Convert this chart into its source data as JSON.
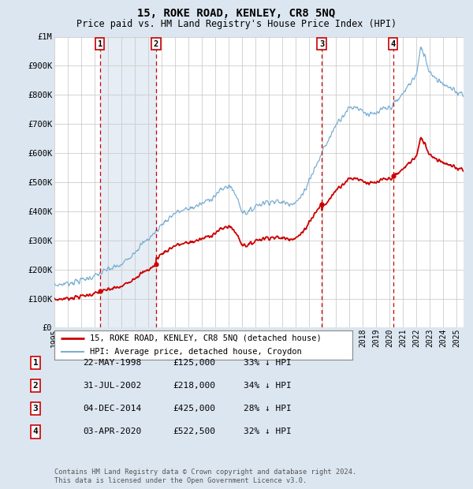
{
  "title": "15, ROKE ROAD, KENLEY, CR8 5NQ",
  "subtitle": "Price paid vs. HM Land Registry's House Price Index (HPI)",
  "xlim": [
    1995.0,
    2025.5
  ],
  "ylim": [
    0,
    1000000
  ],
  "yticks": [
    0,
    100000,
    200000,
    300000,
    400000,
    500000,
    600000,
    700000,
    800000,
    900000,
    1000000
  ],
  "ytick_labels": [
    "£0",
    "£100K",
    "£200K",
    "£300K",
    "£400K",
    "£500K",
    "£600K",
    "£700K",
    "£800K",
    "£900K",
    "£1M"
  ],
  "xticks": [
    1995,
    1996,
    1997,
    1998,
    1999,
    2000,
    2001,
    2002,
    2003,
    2004,
    2005,
    2006,
    2007,
    2008,
    2009,
    2010,
    2011,
    2012,
    2013,
    2014,
    2015,
    2016,
    2017,
    2018,
    2019,
    2020,
    2021,
    2022,
    2023,
    2024,
    2025
  ],
  "purchases": [
    {
      "year": 1998.388,
      "price": 125000,
      "label": "1"
    },
    {
      "year": 2002.578,
      "price": 218000,
      "label": "2"
    },
    {
      "year": 2014.923,
      "price": 425000,
      "label": "3"
    },
    {
      "year": 2020.253,
      "price": 522500,
      "label": "4"
    }
  ],
  "shade_between": [
    1998.388,
    2002.578
  ],
  "legend_line1": "15, ROKE ROAD, KENLEY, CR8 5NQ (detached house)",
  "legend_line2": "HPI: Average price, detached house, Croydon",
  "table": [
    {
      "num": "1",
      "date": "22-MAY-1998",
      "price": "£125,000",
      "pct": "33% ↓ HPI"
    },
    {
      "num": "2",
      "date": "31-JUL-2002",
      "price": "£218,000",
      "pct": "34% ↓ HPI"
    },
    {
      "num": "3",
      "date": "04-DEC-2014",
      "price": "£425,000",
      "pct": "28% ↓ HPI"
    },
    {
      "num": "4",
      "date": "03-APR-2020",
      "price": "£522,500",
      "pct": "32% ↓ HPI"
    }
  ],
  "footnote": "Contains HM Land Registry data © Crown copyright and database right 2024.\nThis data is licensed under the Open Government Licence v3.0.",
  "hpi_color": "#7bafd4",
  "price_color": "#cc0000",
  "bg_color": "#dce6f0",
  "plot_bg": "#ffffff",
  "shade_color": "#dce6f0",
  "vline_color": "#cc0000",
  "label_box_color": "#cc0000",
  "grid_color": "#cccccc"
}
